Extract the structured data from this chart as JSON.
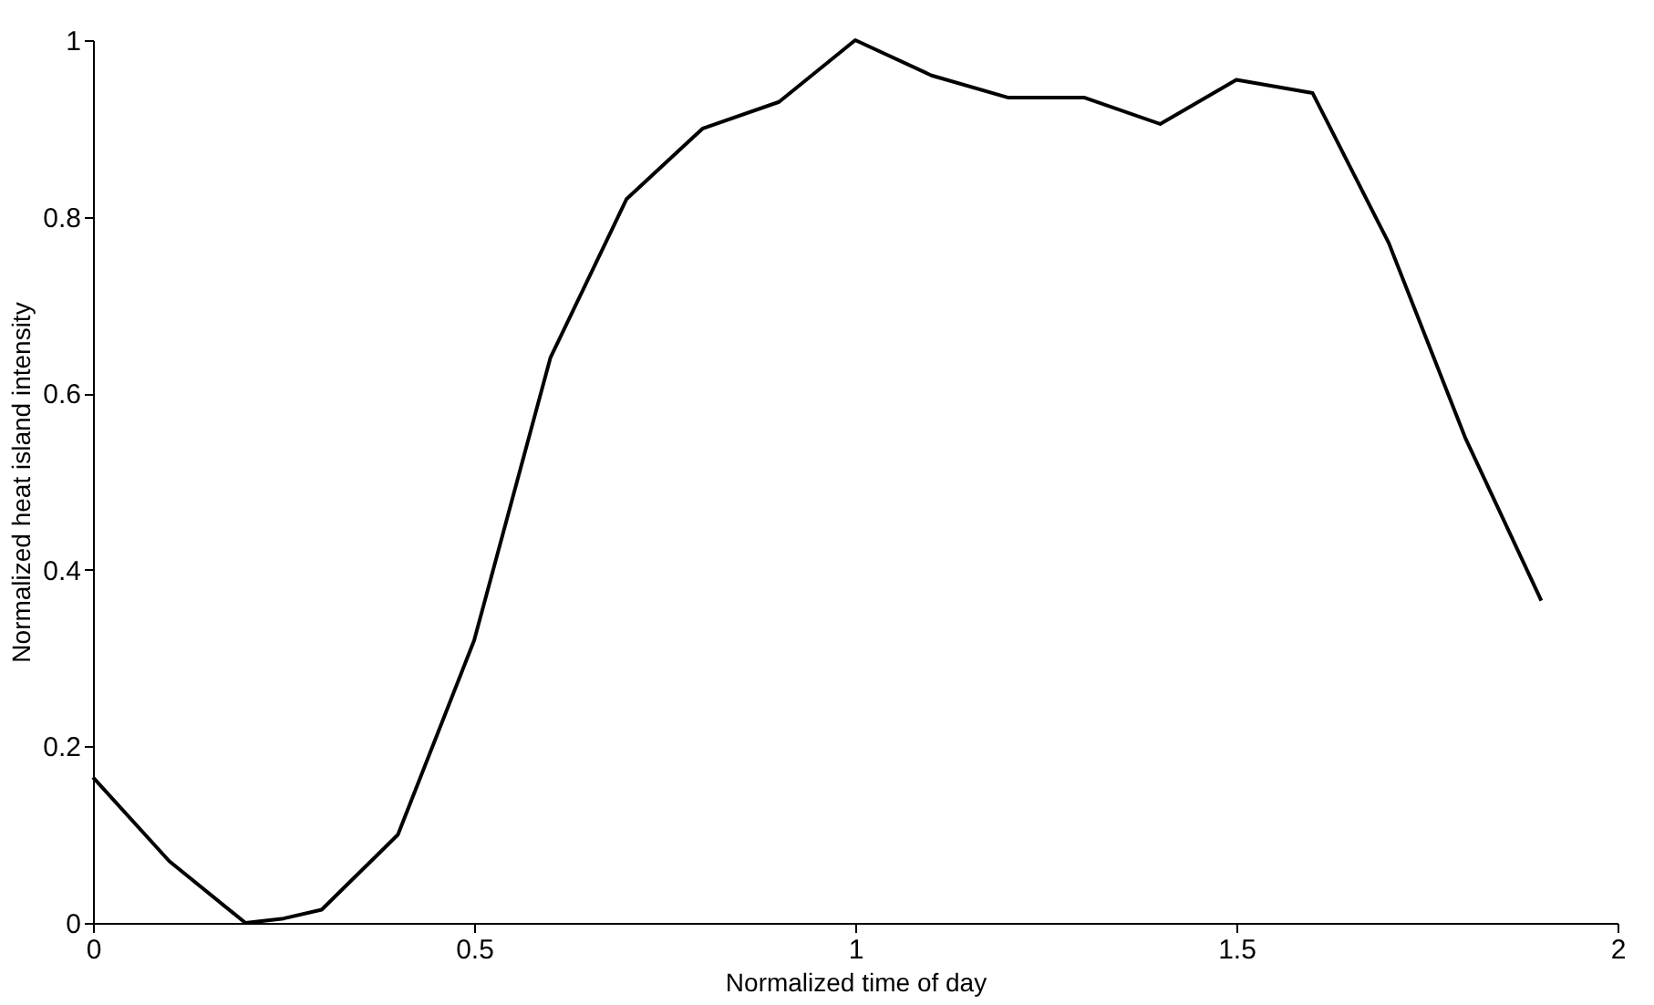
{
  "chart_data": {
    "type": "line",
    "xlabel": "Normalized time of day",
    "ylabel": "Normalized heat island  intensity",
    "x": [
      0,
      0.1,
      0.2,
      0.25,
      0.3,
      0.4,
      0.5,
      0.6,
      0.7,
      0.8,
      0.9,
      1.0,
      1.1,
      1.2,
      1.3,
      1.4,
      1.5,
      1.6,
      1.7,
      1.8,
      1.9
    ],
    "series": [
      {
        "color": "#000000",
        "values": [
          0.165,
          0.07,
          0.0,
          0.005,
          0.015,
          0.1,
          0.32,
          0.64,
          0.82,
          0.9,
          0.93,
          1.0,
          0.96,
          0.935,
          0.935,
          0.905,
          0.955,
          0.94,
          0.77,
          0.55,
          0.365
        ]
      }
    ],
    "xlim": [
      0,
      2
    ],
    "ylim": [
      0,
      1
    ],
    "xticks": [
      0,
      0.5,
      1,
      1.5,
      2
    ],
    "yticks": [
      0,
      0.2,
      0.4,
      0.6,
      0.8,
      1
    ],
    "grid": false,
    "marker": "none",
    "line_style": "solid"
  }
}
